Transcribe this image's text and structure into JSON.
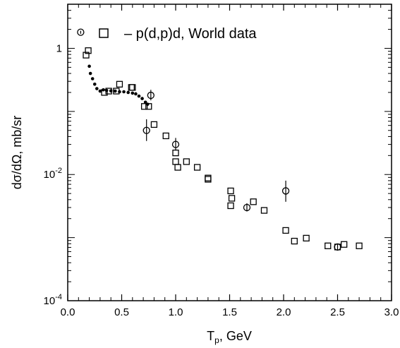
{
  "chart_data": {
    "type": "scatter",
    "title": "",
    "xlabel": "T",
    "xlabel_sub": "p",
    "xlabel_unit": ",  GeV",
    "ylabel": "dσ/dΩ,  mb/sr",
    "xlim": [
      0,
      3
    ],
    "ylim": [
      0.0001,
      5
    ],
    "yscale": "log",
    "grid": false,
    "x_ticks": [
      {
        "v": 0.0,
        "label": "0.0"
      },
      {
        "v": 0.5,
        "label": "0.5"
      },
      {
        "v": 1.0,
        "label": "1.0"
      },
      {
        "v": 1.5,
        "label": "1.5"
      },
      {
        "v": 2.0,
        "label": "2.0"
      },
      {
        "v": 2.5,
        "label": "2.5"
      },
      {
        "v": 3.0,
        "label": "3.0"
      }
    ],
    "y_ticks": [
      {
        "v": 1,
        "base": "1",
        "exp": ""
      },
      {
        "v": 0.01,
        "base": "10",
        "exp": "-2"
      },
      {
        "v": 0.0001,
        "base": "10",
        "exp": "-4"
      }
    ],
    "legend": {
      "label": "–  p(d,p)d,  World data",
      "placement": "top"
    },
    "series": [
      {
        "marker": "open-square",
        "points": [
          [
            0.17,
            0.78
          ],
          [
            0.19,
            0.92
          ],
          [
            0.34,
            0.2
          ],
          [
            0.38,
            0.21
          ],
          [
            0.45,
            0.21
          ],
          [
            0.48,
            0.27
          ],
          [
            0.59,
            0.24
          ],
          [
            0.6,
            0.24
          ],
          [
            0.71,
            0.12
          ],
          [
            0.75,
            0.12
          ],
          [
            0.8,
            0.062
          ],
          [
            0.91,
            0.041
          ],
          [
            1.0,
            0.022
          ],
          [
            1.0,
            0.016
          ],
          [
            1.02,
            0.013
          ],
          [
            1.1,
            0.016
          ],
          [
            1.2,
            0.013
          ],
          [
            1.3,
            0.0088
          ],
          [
            1.3,
            0.0084
          ],
          [
            1.51,
            0.0055
          ],
          [
            1.52,
            0.0042
          ],
          [
            1.51,
            0.0032
          ],
          [
            1.72,
            0.0037
          ],
          [
            1.82,
            0.0027
          ],
          [
            2.02,
            0.0013
          ],
          [
            2.1,
            0.00088
          ],
          [
            2.21,
            0.00098
          ],
          [
            2.41,
            0.00074
          ],
          [
            2.5,
            0.00071
          ],
          [
            2.56,
            0.00078
          ],
          [
            2.7,
            0.00074
          ]
        ]
      },
      {
        "marker": "filled-circle",
        "points": [
          [
            0.2,
            0.52
          ],
          [
            0.21,
            0.4
          ],
          [
            0.23,
            0.33
          ],
          [
            0.25,
            0.27
          ],
          [
            0.27,
            0.23
          ],
          [
            0.3,
            0.21
          ],
          [
            0.33,
            0.22
          ],
          [
            0.36,
            0.215
          ],
          [
            0.4,
            0.212
          ],
          [
            0.44,
            0.21
          ],
          [
            0.48,
            0.205
          ],
          [
            0.52,
            0.205
          ],
          [
            0.56,
            0.2
          ],
          [
            0.6,
            0.195
          ],
          [
            0.63,
            0.19
          ],
          [
            0.66,
            0.175
          ],
          [
            0.69,
            0.16
          ],
          [
            0.72,
            0.14
          ],
          [
            0.74,
            0.13
          ]
        ]
      },
      {
        "marker": "open-circle-errorbar",
        "points": [
          [
            0.12,
            1.8,
            1.9,
            1.7
          ],
          [
            0.73,
            0.05,
            0.075,
            0.034
          ],
          [
            0.77,
            0.18,
            0.22,
            0.15
          ],
          [
            1.0,
            0.03,
            0.038,
            0.024
          ],
          [
            1.66,
            0.003,
            0.0035,
            0.0026
          ],
          [
            2.02,
            0.0055,
            0.008,
            0.0037
          ],
          [
            2.5,
            0.00071,
            0.00079,
            0.00064
          ]
        ]
      }
    ]
  }
}
